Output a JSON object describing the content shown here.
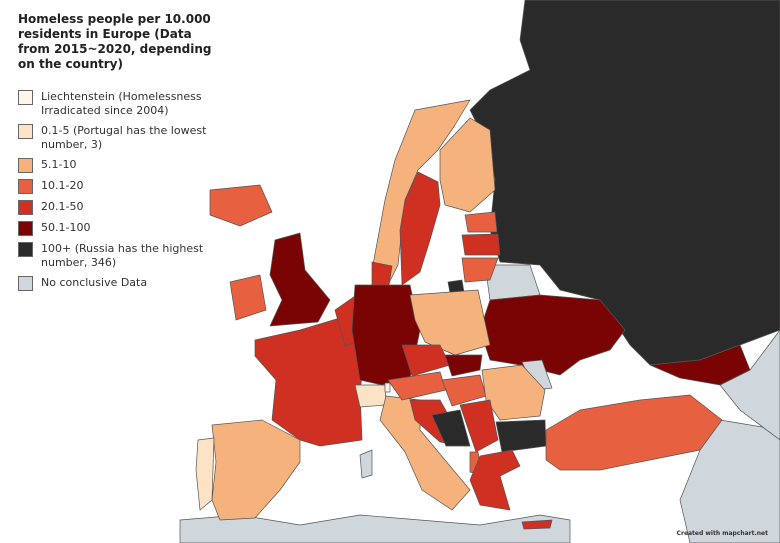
{
  "title": "Homeless people per 10.000 residents in Europe (Data from 2015~2020, depending on the country)",
  "legend": {
    "items": [
      {
        "label": "Liechtenstein (Homelessness Irradicated since 2004)",
        "color": "#fff6ea"
      },
      {
        "label": "0.1-5 (Portugal has the lowest number, 3)",
        "color": "#fde3c5"
      },
      {
        "label": "5.1-10",
        "color": "#f6b27d"
      },
      {
        "label": "10.1-20",
        "color": "#e7603f"
      },
      {
        "label": "20.1-50",
        "color": "#cf3021"
      },
      {
        "label": "50.1-100",
        "color": "#7a0303"
      },
      {
        "label": "100+ (Russia has the highest number, 346)",
        "color": "#2a2a2a"
      },
      {
        "label": "No conclusive Data",
        "color": "#cfd7dd"
      }
    ]
  },
  "credit": "Created with mapchart.net"
}
